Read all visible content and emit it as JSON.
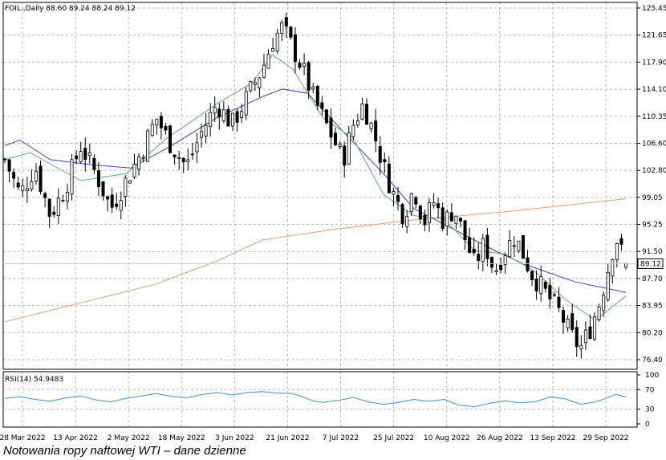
{
  "caption": "Notowania ropy naftowej WTI – dane dzienne",
  "chart_data": [
    {
      "type": "candlestick",
      "header": "FOIL.,Daily  88.60 89.24 88.24 89.12",
      "symbol": "FOIL.",
      "timeframe": "Daily",
      "last_ohlc": {
        "open": 88.6,
        "high": 89.24,
        "low": 88.24,
        "close": 89.12
      },
      "last_price_label": "89.12",
      "y_ticks": [
        "125.45",
        "121.65",
        "117.90",
        "114.10",
        "110.35",
        "106.60",
        "102.80",
        "99.05",
        "95.25",
        "91.50",
        "87.70",
        "83.95",
        "80.20",
        "76.40"
      ],
      "ylim": [
        74.0,
        126.5
      ],
      "x_ticks": [
        "28 Mar 2022",
        "13 Apr 2022",
        "2 May 2022",
        "18 May 2022",
        "3 Jun 2022",
        "21 Jun 2022",
        "7 Jul 2022",
        "25 Jul 2022",
        "10 Aug 2022",
        "26 Aug 2022",
        "13 Sep 2022",
        "29 Sep 2022"
      ],
      "grid": true,
      "candle_colors": {
        "up": "#ffffff",
        "down": "#000000",
        "outline": "#000000"
      },
      "close_path": [
        [
          0,
          104
        ],
        [
          6,
          99
        ],
        [
          12,
          103
        ],
        [
          18,
          96
        ],
        [
          24,
          100
        ],
        [
          30,
          106
        ],
        [
          36,
          102
        ],
        [
          42,
          97
        ],
        [
          48,
          101
        ],
        [
          54,
          105
        ],
        [
          60,
          110
        ],
        [
          66,
          106
        ],
        [
          72,
          103
        ],
        [
          78,
          108
        ],
        [
          84,
          112
        ],
        [
          90,
          109
        ],
        [
          96,
          113
        ],
        [
          102,
          117
        ],
        [
          106,
          121
        ],
        [
          110,
          123
        ],
        [
          114,
          120
        ],
        [
          118,
          117
        ],
        [
          122,
          113
        ],
        [
          126,
          110
        ],
        [
          130,
          107
        ],
        [
          134,
          104
        ],
        [
          138,
          109
        ],
        [
          142,
          112
        ],
        [
          146,
          108
        ],
        [
          150,
          103
        ],
        [
          154,
          99
        ],
        [
          158,
          96
        ],
        [
          162,
          100
        ],
        [
          166,
          95
        ],
        [
          170,
          98
        ],
        [
          174,
          95
        ],
        [
          178,
          97
        ],
        [
          182,
          93
        ],
        [
          186,
          89
        ],
        [
          190,
          92
        ],
        [
          194,
          88
        ],
        [
          198,
          91
        ],
        [
          202,
          93
        ],
        [
          206,
          90
        ],
        [
          208,
          88
        ],
        [
          212,
          86
        ],
        [
          216,
          84
        ],
        [
          220,
          82
        ],
        [
          224,
          79
        ],
        [
          228,
          77
        ],
        [
          232,
          80
        ],
        [
          236,
          84
        ],
        [
          240,
          90
        ],
        [
          242,
          93
        ],
        [
          244,
          91
        ],
        [
          246,
          89.12
        ]
      ],
      "candle_count": 140,
      "series": [
        {
          "type": "line",
          "color": "#e0a070",
          "points": [
            [
              0,
              80.8
            ],
            [
              30,
              83.5
            ],
            [
              60,
              86.2
            ],
            [
              84,
              89.5
            ],
            [
              102,
              92.5
            ],
            [
              130,
              94.0
            ],
            [
              160,
              95.3
            ],
            [
              200,
              96.6
            ],
            [
              246,
              98.4
            ]
          ]
        },
        {
          "type": "line",
          "color": "#4040c0",
          "points": [
            [
              0,
              106
            ],
            [
              6,
              106.8
            ],
            [
              18,
              104
            ],
            [
              36,
              103.2
            ],
            [
              50,
              102.8
            ],
            [
              66,
              106
            ],
            [
              84,
              110
            ],
            [
              102,
              113
            ],
            [
              110,
              114.1
            ],
            [
              120,
              113.5
            ],
            [
              134,
              108
            ],
            [
              150,
              102
            ],
            [
              162,
              97
            ],
            [
              178,
              94
            ],
            [
              194,
              91
            ],
            [
              206,
              89
            ],
            [
              226,
              86.5
            ],
            [
              246,
              85
            ]
          ]
        },
        {
          "type": "line",
          "color": "#5fb07a",
          "points": [
            [
              0,
              104
            ],
            [
              10,
              105
            ],
            [
              30,
              101
            ],
            [
              48,
              102
            ],
            [
              64,
              107
            ],
            [
              84,
              112
            ],
            [
              98,
              115
            ],
            [
              106,
              119
            ],
            [
              114,
              117
            ],
            [
              126,
              110
            ],
            [
              138,
              107
            ],
            [
              150,
              99
            ],
            [
              162,
              96
            ],
            [
              174,
              95.5
            ],
            [
              186,
              91
            ],
            [
              198,
              90.5
            ],
            [
              210,
              88
            ],
            [
              222,
              84
            ],
            [
              234,
              81
            ],
            [
              246,
              84.5
            ]
          ]
        }
      ]
    },
    {
      "type": "line",
      "indicator_label": "RSI(14) 54.9483",
      "period": 14,
      "last_value": 54.9483,
      "y_ticks": [
        "100",
        "70",
        "30",
        "0"
      ],
      "ylim": [
        0,
        100
      ],
      "line_color": "#3d8fd6",
      "values_path": [
        [
          0,
          52
        ],
        [
          6,
          55
        ],
        [
          12,
          50
        ],
        [
          18,
          46
        ],
        [
          24,
          53
        ],
        [
          30,
          57
        ],
        [
          36,
          49
        ],
        [
          42,
          45
        ],
        [
          48,
          52
        ],
        [
          54,
          57
        ],
        [
          60,
          62
        ],
        [
          66,
          56
        ],
        [
          72,
          53
        ],
        [
          78,
          60
        ],
        [
          84,
          64
        ],
        [
          90,
          59
        ],
        [
          96,
          64
        ],
        [
          102,
          66
        ],
        [
          108,
          63
        ],
        [
          114,
          62
        ],
        [
          118,
          55
        ],
        [
          122,
          47
        ],
        [
          126,
          44
        ],
        [
          132,
          48
        ],
        [
          138,
          54
        ],
        [
          144,
          45
        ],
        [
          150,
          40
        ],
        [
          156,
          44
        ],
        [
          162,
          50
        ],
        [
          168,
          46
        ],
        [
          174,
          50
        ],
        [
          180,
          38
        ],
        [
          186,
          35
        ],
        [
          192,
          42
        ],
        [
          198,
          47
        ],
        [
          204,
          43
        ],
        [
          210,
          45
        ],
        [
          216,
          55
        ],
        [
          222,
          51
        ],
        [
          228,
          40
        ],
        [
          234,
          45
        ],
        [
          238,
          52
        ],
        [
          242,
          60
        ],
        [
          244,
          58
        ],
        [
          246,
          54.9483
        ]
      ]
    }
  ]
}
